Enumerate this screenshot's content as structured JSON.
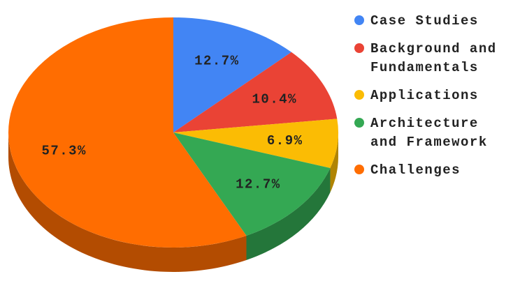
{
  "chart_data": {
    "type": "pie3d",
    "categories": [
      "Case Studies",
      "Background and Fundamentals",
      "Applications",
      "Architecture and Framework",
      "Challenges"
    ],
    "values": [
      12.7,
      10.4,
      6.9,
      12.7,
      57.3
    ],
    "value_labels": [
      "12.7%",
      "10.4%",
      "6.9%",
      "12.7%",
      "57.3%"
    ],
    "colors": [
      "#4285f4",
      "#ea4335",
      "#fbbc04",
      "#34a853",
      "#ff6d01"
    ],
    "legend": "right"
  }
}
